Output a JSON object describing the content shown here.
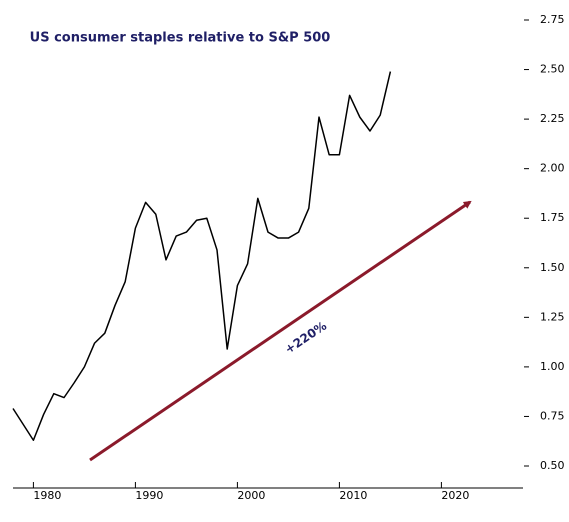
{
  "chart_data": {
    "type": "line",
    "title": "US consumer staples relative to S&P 500",
    "annotation": "+220%",
    "x": [
      1978,
      1979,
      1980,
      1981,
      1982,
      1983,
      1984,
      1985,
      1986,
      1987,
      1988,
      1989,
      1990,
      1991,
      1992,
      1993,
      1994,
      1995,
      1996,
      1997,
      1998,
      1999,
      2000,
      2001,
      2002,
      2003,
      2004,
      2005,
      2006,
      2007,
      2008,
      2009,
      2010,
      2011,
      2012,
      2013,
      2014,
      2015
    ],
    "series": [
      {
        "color": "#000000",
        "values": [
          0.79,
          0.71,
          0.63,
          0.76,
          0.865,
          0.845,
          0.92,
          1.0,
          1.12,
          1.17,
          1.31,
          1.43,
          1.7,
          1.83,
          1.77,
          1.54,
          1.66,
          1.68,
          1.74,
          1.75,
          1.59,
          1.09,
          1.41,
          1.52,
          1.85,
          1.68,
          1.65,
          1.65,
          1.68,
          1.8,
          2.26,
          2.07,
          2.07,
          2.37,
          2.26,
          2.19,
          2.27,
          2.49
        ]
      }
    ],
    "xlim": [
      1978,
      2028
    ],
    "xticks": [
      1980,
      1990,
      2000,
      2010,
      2020
    ],
    "ylim": [
      0.5,
      2.75
    ],
    "yticks": [
      {
        "value": 0.5,
        "label": "0.50"
      },
      {
        "value": 0.75,
        "label": "0.75"
      },
      {
        "value": 1,
        "label": "1.00"
      },
      {
        "value": 1.25,
        "label": "1.25"
      },
      {
        "value": 1.5,
        "label": "1.50"
      },
      {
        "value": 1.75,
        "label": "1.75"
      },
      {
        "value": 2,
        "label": "2.00"
      },
      {
        "value": 2.25,
        "label": "2.25"
      },
      {
        "value": 2.5,
        "label": "2.50"
      },
      {
        "value": 2.75,
        "label": "2.75"
      }
    ]
  }
}
